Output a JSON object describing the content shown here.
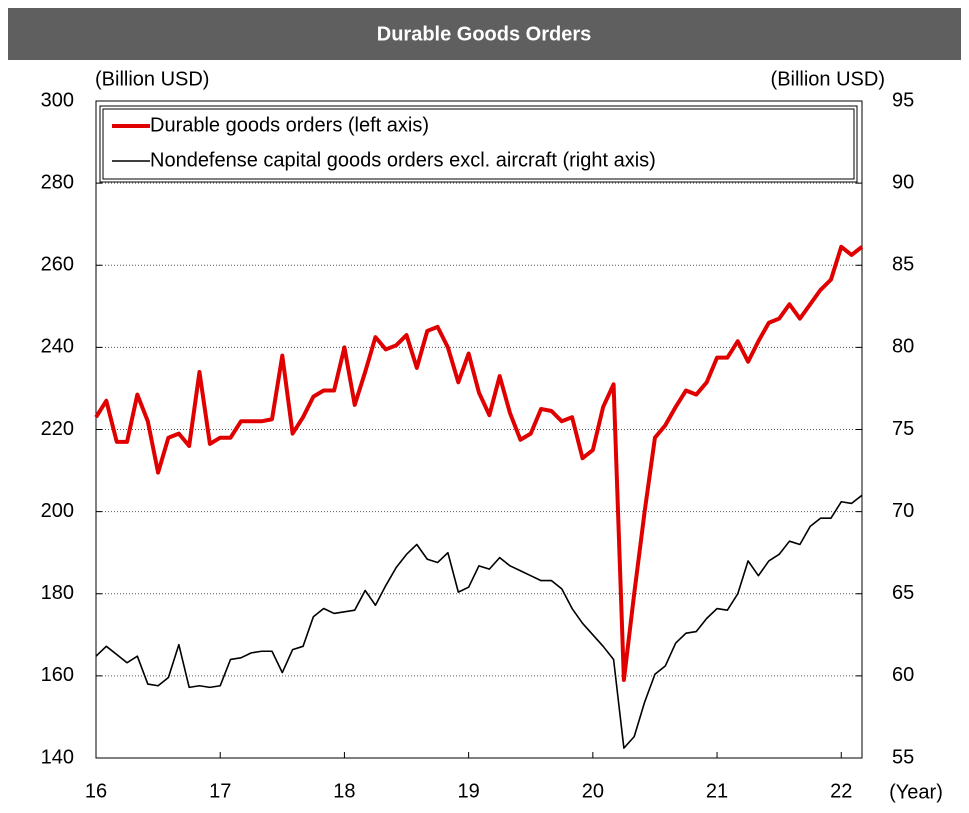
{
  "chart_data": {
    "type": "line",
    "title": "Durable Goods Orders",
    "y_label": "(Billion USD)",
    "y2_label": "(Billion USD)",
    "x_label": "(Year)",
    "x": [
      16,
      16.083,
      16.167,
      16.25,
      16.333,
      16.417,
      16.5,
      16.583,
      16.667,
      16.75,
      16.833,
      16.917,
      17,
      17.083,
      17.167,
      17.25,
      17.333,
      17.417,
      17.5,
      17.583,
      17.667,
      17.75,
      17.833,
      17.917,
      18,
      18.083,
      18.167,
      18.25,
      18.333,
      18.417,
      18.5,
      18.583,
      18.667,
      18.75,
      18.833,
      18.917,
      19,
      19.083,
      19.167,
      19.25,
      19.333,
      19.417,
      19.5,
      19.583,
      19.667,
      19.75,
      19.833,
      19.917,
      20,
      20.083,
      20.167,
      20.25,
      20.333,
      20.417,
      20.5,
      20.583,
      20.667,
      20.75,
      20.833,
      20.917,
      21,
      21.083,
      21.167,
      21.25,
      21.333,
      21.417,
      21.5,
      21.583,
      21.667,
      21.75,
      21.833,
      21.917,
      22,
      22.083,
      22.167
    ],
    "xlim": [
      16,
      22.167
    ],
    "xticks": [
      16,
      17,
      18,
      19,
      20,
      21,
      22
    ],
    "ylim": [
      140,
      300
    ],
    "yticks": [
      140,
      160,
      180,
      200,
      220,
      240,
      260,
      280,
      300
    ],
    "y2lim": [
      55,
      95
    ],
    "y2ticks": [
      55,
      60,
      65,
      70,
      75,
      80,
      85,
      90,
      95
    ],
    "grid": true,
    "series": [
      {
        "name": "Durable goods orders (left axis)",
        "color": "#e00000",
        "axis": "y",
        "values": [
          223,
          227,
          217,
          217,
          228.5,
          222,
          209.5,
          218,
          219,
          216,
          234,
          216.5,
          218,
          218,
          222,
          222,
          222,
          222.5,
          238,
          219,
          223,
          228,
          229.5,
          229.5,
          240,
          226,
          234,
          242.5,
          239.5,
          240.5,
          243,
          235,
          244,
          245,
          240,
          231.5,
          238.5,
          229,
          223.5,
          233,
          224,
          217.5,
          219,
          225,
          224.5,
          222,
          223,
          213,
          215,
          225.5,
          231,
          159,
          180,
          200,
          218,
          221,
          225.5,
          229.5,
          228.5,
          231.5,
          237.5,
          237.5,
          241.5,
          236.5,
          241.5,
          246,
          247,
          250.5,
          247,
          250.5,
          254,
          256.5,
          264.5,
          262.5,
          264.5
        ]
      },
      {
        "name": "Nondefense capital goods orders excl. aircraft (right axis)",
        "color": "#000000",
        "axis": "y2",
        "values": [
          61.2,
          61.8,
          61.3,
          60.8,
          61.2,
          59.5,
          59.4,
          59.9,
          61.9,
          59.3,
          59.4,
          59.3,
          59.4,
          61.0,
          61.1,
          61.4,
          61.5,
          61.5,
          60.2,
          61.6,
          61.8,
          63.6,
          64.1,
          63.8,
          63.9,
          64.0,
          65.2,
          64.3,
          65.5,
          66.6,
          67.4,
          68.0,
          67.1,
          66.9,
          67.5,
          65.1,
          65.4,
          66.7,
          66.5,
          67.2,
          66.7,
          66.4,
          66.1,
          65.8,
          65.8,
          65.3,
          64.1,
          63.2,
          62.5,
          61.8,
          61.0,
          55.6,
          56.3,
          58.4,
          60.1,
          60.6,
          62.0,
          62.6,
          62.7,
          63.5,
          64.1,
          64.0,
          65.0,
          67.0,
          66.1,
          67.0,
          67.4,
          68.2,
          68.0,
          69.1,
          69.6,
          69.6,
          70.6,
          70.5,
          71.0
        ]
      }
    ]
  }
}
